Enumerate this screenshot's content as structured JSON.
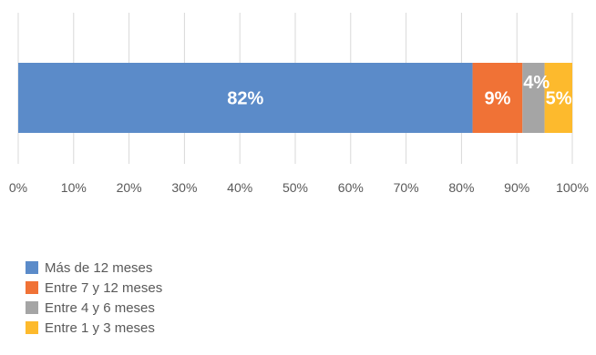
{
  "chart_data": {
    "type": "bar",
    "orientation": "horizontal-stacked-100",
    "title": "",
    "xlabel": "",
    "ylabel": "",
    "xlim": [
      0,
      100
    ],
    "x_ticks": [
      "0%",
      "10%",
      "20%",
      "30%",
      "40%",
      "50%",
      "60%",
      "70%",
      "80%",
      "90%",
      "100%"
    ],
    "grid": true,
    "legend_position": "bottom-left",
    "series": [
      {
        "name": "Más de 12 meses",
        "value": 82,
        "label": "82%",
        "color": "#5B8BC9"
      },
      {
        "name": "Entre 7 y 12 meses",
        "value": 9,
        "label": "9%",
        "color": "#F07236"
      },
      {
        "name": "Entre 4 y 6 meses",
        "value": 4,
        "label": "4%",
        "color": "#A5A5A5"
      },
      {
        "name": "Entre 1 y 3 meses",
        "value": 5,
        "label": "5%",
        "color": "#FDBA2D"
      }
    ]
  }
}
